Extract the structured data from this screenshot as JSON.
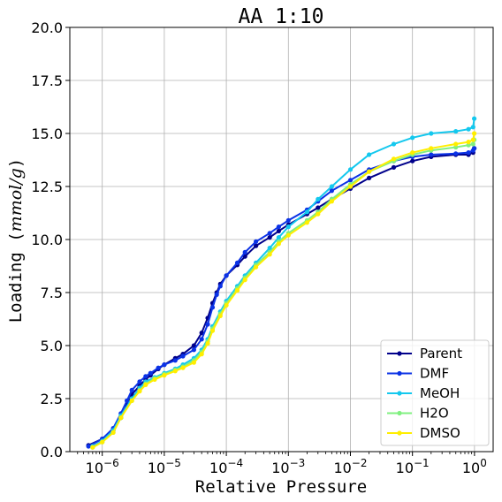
{
  "chart_data": {
    "type": "line",
    "title": "AA 1:10",
    "xlabel": "Relative Pressure",
    "ylabel_parts": [
      "Loading ",
      "(",
      "mmol/g",
      ")"
    ],
    "x_scale": "log",
    "xlim": [
      3e-07,
      2
    ],
    "ylim": [
      0,
      20
    ],
    "grid": true,
    "legend_position": "lower right",
    "y_ticks": [
      {
        "value": 0,
        "label": "0.0"
      },
      {
        "value": 2.5,
        "label": "2.5"
      },
      {
        "value": 5,
        "label": "5.0"
      },
      {
        "value": 7.5,
        "label": "7.5"
      },
      {
        "value": 10,
        "label": "10.0"
      },
      {
        "value": 12.5,
        "label": "12.5"
      },
      {
        "value": 15,
        "label": "15.0"
      },
      {
        "value": 17.5,
        "label": "17.5"
      },
      {
        "value": 20,
        "label": "20.0"
      }
    ],
    "x_ticks": [
      {
        "value": 1e-06,
        "base": "10",
        "exp": "−6"
      },
      {
        "value": 1e-05,
        "base": "10",
        "exp": "−5"
      },
      {
        "value": 0.0001,
        "base": "10",
        "exp": "−4"
      },
      {
        "value": 0.001,
        "base": "10",
        "exp": "−3"
      },
      {
        "value": 0.01,
        "base": "10",
        "exp": "−2"
      },
      {
        "value": 0.1,
        "base": "10",
        "exp": "−1"
      },
      {
        "value": 1,
        "base": "10",
        "exp": "0"
      }
    ],
    "series": [
      {
        "name": "Parent",
        "color": "#00008b",
        "x": [
          6e-07,
          1e-06,
          1.5e-06,
          2e-06,
          2.5e-06,
          3e-06,
          4e-06,
          5e-06,
          6e-06,
          8e-06,
          1e-05,
          1.5e-05,
          2e-05,
          3e-05,
          4e-05,
          5e-05,
          6e-05,
          7e-05,
          8e-05,
          0.0001,
          0.00015,
          0.0002,
          0.0003,
          0.0005,
          0.0007,
          0.001,
          0.002,
          0.003,
          0.005,
          0.01,
          0.02,
          0.05,
          0.1,
          0.2,
          0.5,
          0.8,
          0.95,
          0.99
        ],
        "y": [
          0.3,
          0.6,
          1.0,
          1.6,
          2.2,
          2.7,
          3.1,
          3.4,
          3.6,
          3.9,
          4.1,
          4.4,
          4.6,
          5.0,
          5.6,
          6.3,
          7.0,
          7.5,
          7.9,
          8.3,
          8.8,
          9.2,
          9.7,
          10.1,
          10.4,
          10.7,
          11.2,
          11.5,
          11.9,
          12.4,
          12.9,
          13.4,
          13.7,
          13.9,
          14.0,
          14.0,
          14.1,
          14.3
        ]
      },
      {
        "name": "DMF",
        "color": "#0b32e6",
        "x": [
          6e-07,
          1e-06,
          1.5e-06,
          2e-06,
          2.5e-06,
          3e-06,
          4e-06,
          5e-06,
          6e-06,
          8e-06,
          1e-05,
          1.5e-05,
          2e-05,
          3e-05,
          4e-05,
          5e-05,
          6e-05,
          7e-05,
          8e-05,
          0.0001,
          0.00015,
          0.0002,
          0.0003,
          0.0005,
          0.0007,
          0.001,
          0.002,
          0.003,
          0.005,
          0.01,
          0.02,
          0.05,
          0.1,
          0.2,
          0.5,
          0.8,
          0.95,
          0.99
        ],
        "y": [
          0.25,
          0.6,
          1.1,
          1.8,
          2.4,
          2.9,
          3.3,
          3.55,
          3.7,
          3.95,
          4.1,
          4.3,
          4.5,
          4.8,
          5.3,
          6.0,
          6.8,
          7.4,
          7.8,
          8.3,
          8.9,
          9.4,
          9.9,
          10.3,
          10.6,
          10.9,
          11.4,
          11.8,
          12.3,
          12.8,
          13.3,
          13.7,
          13.9,
          14.0,
          14.05,
          14.1,
          14.2,
          14.3
        ]
      },
      {
        "name": "MeOH",
        "color": "#14c8ee",
        "x": [
          7e-07,
          1e-06,
          1.5e-06,
          2e-06,
          3e-06,
          4e-06,
          5e-06,
          7e-06,
          1e-05,
          1.5e-05,
          2e-05,
          3e-05,
          4e-05,
          5e-05,
          6e-05,
          8e-05,
          0.0001,
          0.00015,
          0.0002,
          0.0003,
          0.0005,
          0.0007,
          0.001,
          0.002,
          0.003,
          0.005,
          0.01,
          0.02,
          0.05,
          0.1,
          0.2,
          0.5,
          0.8,
          0.95,
          0.99
        ],
        "y": [
          0.25,
          0.5,
          1.0,
          1.7,
          2.5,
          3.0,
          3.3,
          3.5,
          3.7,
          3.9,
          4.1,
          4.4,
          4.8,
          5.3,
          5.9,
          6.6,
          7.1,
          7.8,
          8.3,
          8.9,
          9.6,
          10.1,
          10.6,
          11.3,
          11.9,
          12.5,
          13.3,
          14.0,
          14.5,
          14.8,
          15.0,
          15.1,
          15.2,
          15.3,
          15.7
        ]
      },
      {
        "name": "H2O",
        "color": "#80f080",
        "x": [
          7e-07,
          1e-06,
          1.5e-06,
          2e-06,
          3e-06,
          4e-06,
          5e-06,
          7e-06,
          1e-05,
          1.5e-05,
          2e-05,
          3e-05,
          4e-05,
          5e-05,
          6e-05,
          8e-05,
          0.0001,
          0.00015,
          0.0002,
          0.0003,
          0.0005,
          0.0007,
          0.001,
          0.002,
          0.003,
          0.005,
          0.01,
          0.02,
          0.05,
          0.1,
          0.2,
          0.5,
          0.8,
          0.95,
          0.99
        ],
        "y": [
          0.2,
          0.45,
          0.9,
          1.6,
          2.4,
          2.9,
          3.2,
          3.45,
          3.65,
          3.85,
          4.0,
          4.3,
          4.7,
          5.2,
          5.8,
          6.5,
          7.0,
          7.7,
          8.2,
          8.8,
          9.4,
          9.9,
          10.3,
          10.9,
          11.3,
          11.9,
          12.6,
          13.2,
          13.7,
          14.0,
          14.2,
          14.35,
          14.45,
          14.5,
          14.7
        ]
      },
      {
        "name": "DMSO",
        "color": "#ffee00",
        "x": [
          7e-07,
          1e-06,
          1.5e-06,
          2e-06,
          3e-06,
          4e-06,
          5e-06,
          7e-06,
          1e-05,
          1.5e-05,
          2e-05,
          3e-05,
          4e-05,
          5e-05,
          6e-05,
          8e-05,
          0.0001,
          0.00015,
          0.0002,
          0.0003,
          0.0005,
          0.0007,
          0.001,
          0.002,
          0.003,
          0.005,
          0.01,
          0.02,
          0.05,
          0.1,
          0.2,
          0.5,
          0.8,
          0.95,
          0.99
        ],
        "y": [
          0.2,
          0.45,
          0.9,
          1.6,
          2.4,
          2.85,
          3.15,
          3.4,
          3.6,
          3.8,
          3.95,
          4.2,
          4.6,
          5.1,
          5.7,
          6.4,
          6.9,
          7.6,
          8.1,
          8.7,
          9.3,
          9.8,
          10.2,
          10.8,
          11.2,
          11.8,
          12.5,
          13.2,
          13.8,
          14.1,
          14.3,
          14.5,
          14.6,
          14.7,
          15.0
        ]
      }
    ]
  }
}
